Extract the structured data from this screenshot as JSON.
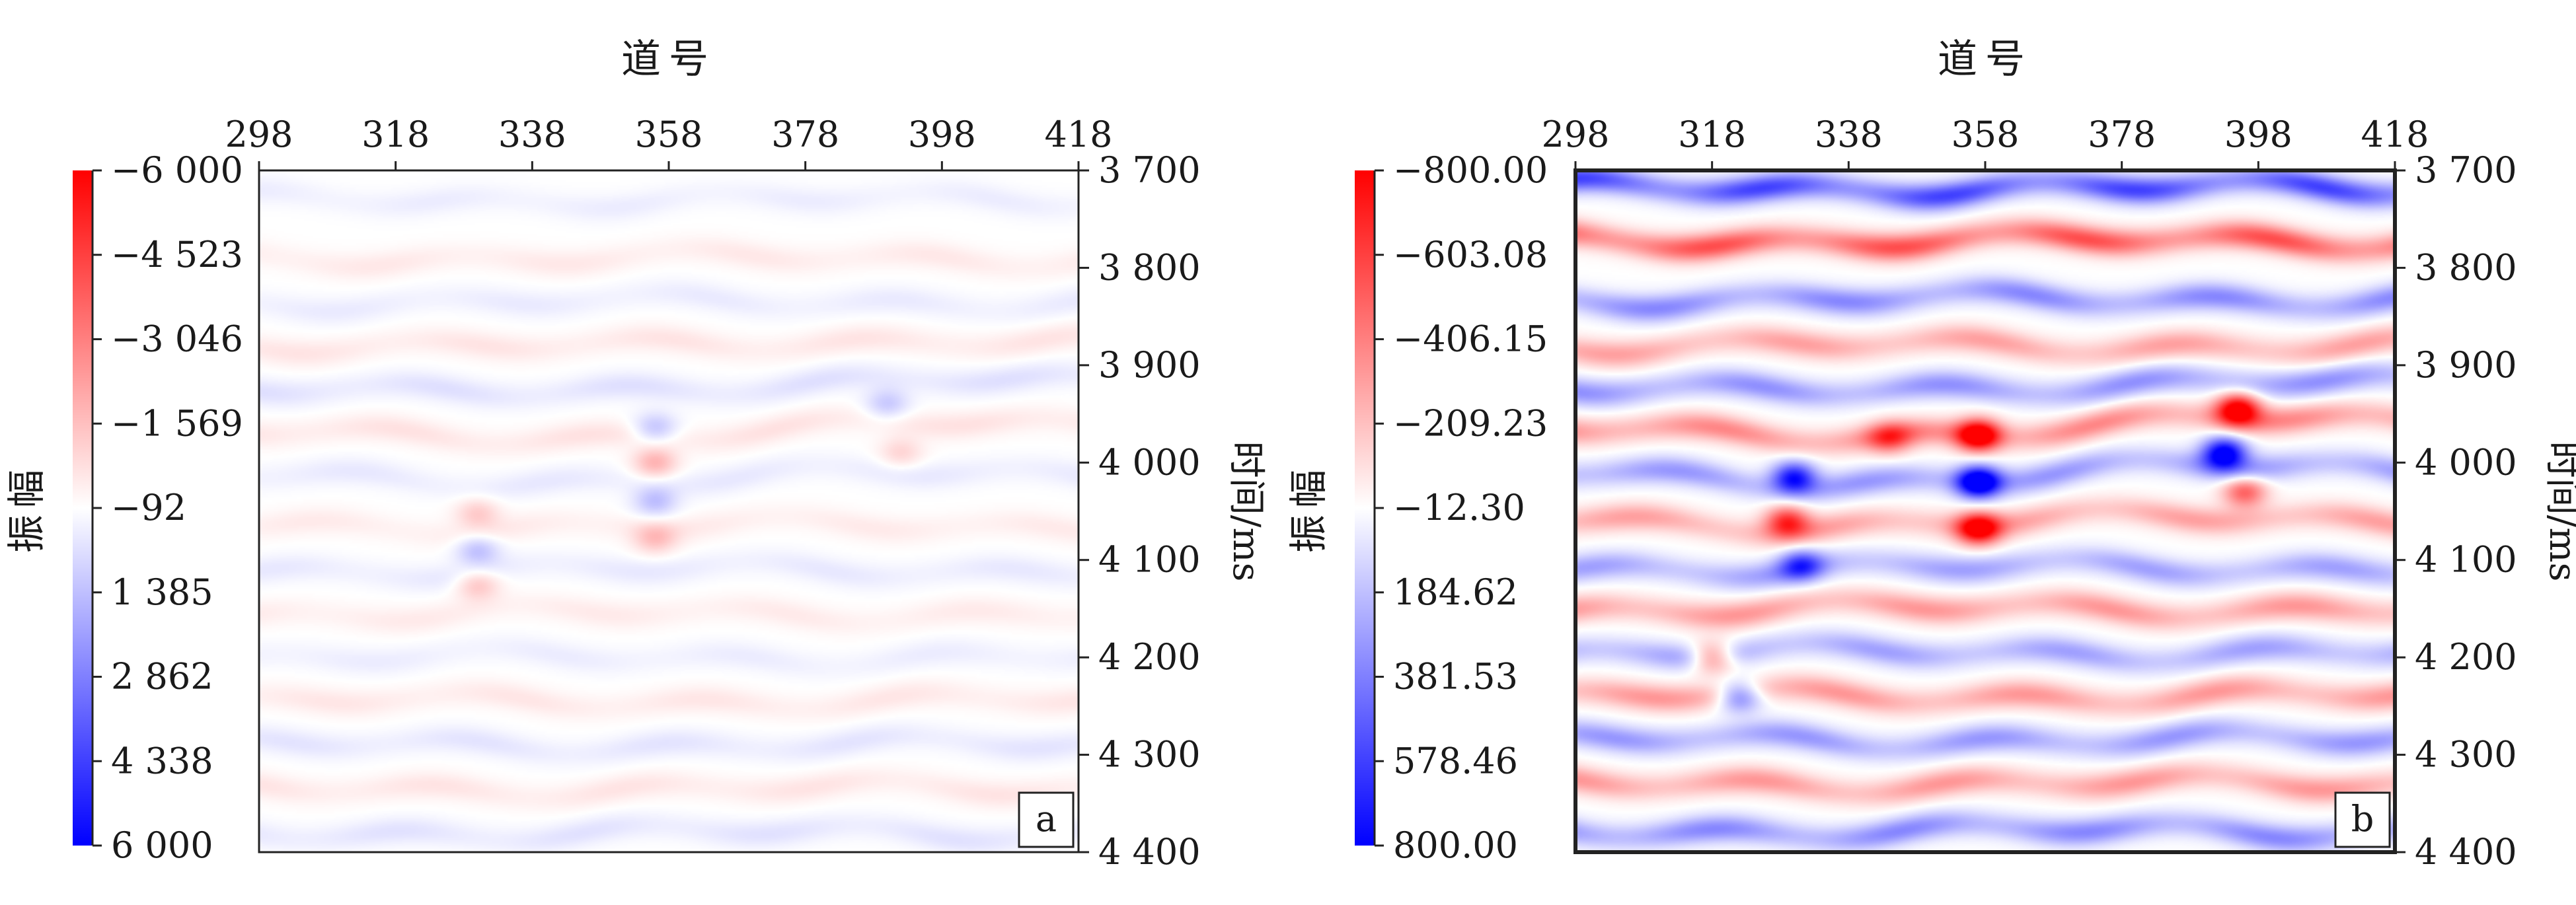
{
  "chart_data": [
    {
      "type": "heatmap",
      "panel_label": "a",
      "xlabel": "道号",
      "ylabel": "时间/ms",
      "colorbar_label": "振幅",
      "xlim": [
        298,
        418
      ],
      "ylim": [
        3700,
        4400
      ],
      "xticks": [
        298,
        318,
        338,
        358,
        378,
        398,
        418
      ],
      "yticks": [
        "3 700",
        "3 800",
        "3 900",
        "4 000",
        "4 100",
        "4 200",
        "4 300",
        "4 400"
      ],
      "colorbar_ticks": [
        "−6 000",
        "−4 523",
        "−3 046",
        "−1 569",
        "−92",
        "1 385",
        "2 862",
        "4 338",
        "6 000"
      ],
      "colorbar_range": [
        -6000,
        6000
      ],
      "colormap": {
        "negative": "#ff0000",
        "zero": "#ffffff",
        "positive": "#0000ff"
      },
      "bands": [
        {
          "t": 3730,
          "amp": 450,
          "tilt": 0
        },
        {
          "t": 3790,
          "amp": -550,
          "tilt": 0
        },
        {
          "t": 3835,
          "amp": 500,
          "tilt": 0
        },
        {
          "t": 3878,
          "amp": -650,
          "tilt": 4
        },
        {
          "t": 3922,
          "amp": 750,
          "tilt": 8
        },
        {
          "t": 3968,
          "amp": -700,
          "tilt": 8
        },
        {
          "t": 4015,
          "amp": 550,
          "tilt": 4
        },
        {
          "t": 4065,
          "amp": -500,
          "tilt": 0
        },
        {
          "t": 4110,
          "amp": 550,
          "tilt": 0
        },
        {
          "t": 4155,
          "amp": -500,
          "tilt": 0
        },
        {
          "t": 4200,
          "amp": 450,
          "tilt": 0
        },
        {
          "t": 4245,
          "amp": -600,
          "tilt": 0
        },
        {
          "t": 4290,
          "amp": 650,
          "tilt": 0
        },
        {
          "t": 4335,
          "amp": -650,
          "tilt": 0
        },
        {
          "t": 4380,
          "amp": 700,
          "tilt": 0
        }
      ],
      "anomalies": [
        {
          "x": 356,
          "t": 3965,
          "amp": 1500
        },
        {
          "x": 356,
          "t": 4000,
          "amp": -1800
        },
        {
          "x": 356,
          "t": 4040,
          "amp": 1500
        },
        {
          "x": 356,
          "t": 4078,
          "amp": -1400
        },
        {
          "x": 330,
          "t": 4052,
          "amp": -1200
        },
        {
          "x": 330,
          "t": 4090,
          "amp": 1500
        },
        {
          "x": 330,
          "t": 4125,
          "amp": -1400
        },
        {
          "x": 390,
          "t": 3940,
          "amp": 1300
        },
        {
          "x": 392,
          "t": 3990,
          "amp": -1000
        }
      ]
    },
    {
      "type": "heatmap",
      "panel_label": "b",
      "xlabel": "道号",
      "ylabel": "时间/ms",
      "colorbar_label": "振幅",
      "xlim": [
        298,
        418
      ],
      "ylim": [
        3700,
        4400
      ],
      "xticks": [
        298,
        318,
        338,
        358,
        378,
        398,
        418
      ],
      "yticks": [
        "3 700",
        "3 800",
        "3 900",
        "4 000",
        "4 100",
        "4 200",
        "4 300",
        "4 400"
      ],
      "colorbar_ticks": [
        "−800.00",
        "−603.08",
        "−406.15",
        "−209.23",
        "−12.30",
        "184.62",
        "381.53",
        "578.46",
        "800.00"
      ],
      "colorbar_range": [
        -800,
        800
      ],
      "colormap": {
        "negative": "#ff0000",
        "zero": "#ffffff",
        "positive": "#0000ff"
      },
      "bands": [
        {
          "t": 3718,
          "amp": 600,
          "tilt": 0
        },
        {
          "t": 3772,
          "amp": -560,
          "tilt": 0
        },
        {
          "t": 3832,
          "amp": 380,
          "tilt": 0
        },
        {
          "t": 3880,
          "amp": -300,
          "tilt": 0
        },
        {
          "t": 3922,
          "amp": 350,
          "tilt": 6
        },
        {
          "t": 3965,
          "amp": -380,
          "tilt": 10
        },
        {
          "t": 4012,
          "amp": 330,
          "tilt": 8
        },
        {
          "t": 4060,
          "amp": -300,
          "tilt": 4
        },
        {
          "t": 4108,
          "amp": 300,
          "tilt": 0
        },
        {
          "t": 4150,
          "amp": -330,
          "tilt": 0
        },
        {
          "t": 4195,
          "amp": 300,
          "tilt": 0
        },
        {
          "t": 4240,
          "amp": -330,
          "tilt": 0
        },
        {
          "t": 4285,
          "amp": 330,
          "tilt": 0
        },
        {
          "t": 4330,
          "amp": -330,
          "tilt": 0
        },
        {
          "t": 4378,
          "amp": 380,
          "tilt": 0
        }
      ],
      "anomalies": [
        {
          "x": 357,
          "t": 3972,
          "amp": -900
        },
        {
          "x": 357,
          "t": 4020,
          "amp": 950
        },
        {
          "x": 357,
          "t": 4068,
          "amp": -800
        },
        {
          "x": 330,
          "t": 4015,
          "amp": 700
        },
        {
          "x": 329,
          "t": 4060,
          "amp": -600
        },
        {
          "x": 331,
          "t": 4105,
          "amp": 500
        },
        {
          "x": 395,
          "t": 3945,
          "amp": -850
        },
        {
          "x": 393,
          "t": 3990,
          "amp": 850
        },
        {
          "x": 396,
          "t": 4030,
          "amp": -500
        },
        {
          "x": 344,
          "t": 3975,
          "amp": -400
        },
        {
          "x": 318,
          "t": 4200,
          "amp": -500
        },
        {
          "x": 322,
          "t": 4240,
          "amp": 450
        }
      ]
    }
  ]
}
